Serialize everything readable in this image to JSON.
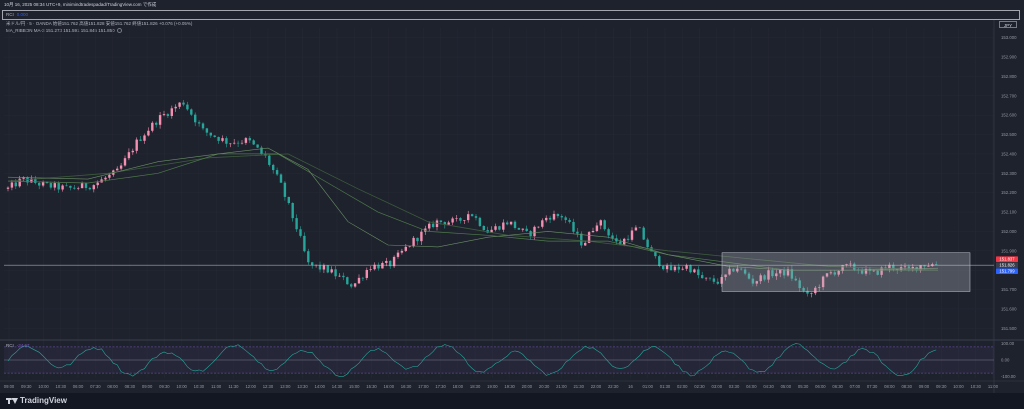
{
  "header": {
    "timestamp_line": "10月 16, 2025 08:34 UTC+9,  minimindtradespadad/TradingView.com で作成"
  },
  "top_panel": {
    "label": "RCI",
    "value": "0.000"
  },
  "legend": {
    "symbol_line": "米ドル/円 · 5 · OANDA  始値151.762  高値151.828  安値151.762  終値151.826  +0.076 (+0.05%)",
    "ribbon_line": "MA_RIBBON MA-3  151.273  151.591  151.845  151.850"
  },
  "currency_badge": "JPY",
  "rsi_panel": {
    "label": "RCI",
    "value": "-34.67"
  },
  "footer": {
    "brand": "TradingView"
  },
  "colors": {
    "background": "#1e222d",
    "up": "#f48fb1",
    "down": "#26a69a",
    "ma": "#4a6b45",
    "rci": "#26a69a",
    "box_fill": "#a8abb4",
    "price_red": "#f23645",
    "price_blue": "#2962ff"
  },
  "price_tags": [
    {
      "text": "151.837",
      "color": "#f23645"
    },
    {
      "text": "151.826",
      "color": "#3a3e4a"
    },
    {
      "text": "151.799",
      "color": "#2962ff"
    }
  ],
  "chart_data": {
    "type": "candlestick",
    "price_axis": {
      "ticks": [
        "153.000",
        "152.900",
        "152.800",
        "152.700",
        "152.600",
        "152.500",
        "152.400",
        "152.300",
        "152.200",
        "152.100",
        "152.000",
        "151.900",
        "151.800",
        "151.700",
        "151.600",
        "151.500"
      ],
      "ylim": [
        151.45,
        153.05
      ]
    },
    "rci_axis": {
      "ticks": [
        "100.00",
        "0.00",
        "-100.00"
      ],
      "ylim": [
        -110,
        110
      ]
    },
    "time_labels": [
      "09:00",
      "09:30",
      "10:00",
      "10:30",
      "06:00",
      "07:30",
      "08:00",
      "08:30",
      "09:00",
      "09:30",
      "10:00",
      "10:30",
      "11:00",
      "11:30",
      "12:00",
      "12:30",
      "13:00",
      "13:30",
      "14:00",
      "14:30",
      "15:00",
      "15:30",
      "16:00",
      "16:30",
      "17:00",
      "17:30",
      "18:00",
      "18:30",
      "19:00",
      "19:30",
      "20:00",
      "20:30",
      "21:00",
      "21:30",
      "22:00",
      "22:30",
      "16",
      "01:00",
      "01:30",
      "02:00",
      "02:30",
      "03:00",
      "03:30",
      "04:00",
      "04:30",
      "05:00",
      "05:30",
      "06:00",
      "06:30",
      "07:00",
      "07:30",
      "08:00",
      "08:30",
      "09:00",
      "09:30",
      "10:00",
      "10:30",
      "11:00"
    ],
    "anchors": [
      [
        0,
        152.22
      ],
      [
        15,
        152.27
      ],
      [
        35,
        152.24
      ],
      [
        60,
        152.22
      ],
      [
        85,
        152.24
      ],
      [
        110,
        152.31
      ],
      [
        130,
        152.47
      ],
      [
        150,
        152.58
      ],
      [
        175,
        152.67
      ],
      [
        195,
        152.52
      ],
      [
        220,
        152.46
      ],
      [
        240,
        152.47
      ],
      [
        258,
        152.38
      ],
      [
        272,
        152.25
      ],
      [
        290,
        152.0
      ],
      [
        300,
        151.83
      ],
      [
        320,
        151.8
      ],
      [
        345,
        151.72
      ],
      [
        362,
        151.82
      ],
      [
        382,
        151.83
      ],
      [
        405,
        151.95
      ],
      [
        428,
        152.05
      ],
      [
        450,
        152.05
      ],
      [
        462,
        152.1
      ],
      [
        480,
        152.0
      ],
      [
        500,
        152.05
      ],
      [
        520,
        151.98
      ],
      [
        540,
        152.08
      ],
      [
        555,
        152.08
      ],
      [
        575,
        151.93
      ],
      [
        590,
        152.06
      ],
      [
        610,
        151.93
      ],
      [
        630,
        152.02
      ],
      [
        645,
        151.87
      ],
      [
        660,
        151.8
      ],
      [
        680,
        151.82
      ],
      [
        695,
        151.75
      ],
      [
        712,
        151.74
      ],
      [
        728,
        151.82
      ],
      [
        745,
        151.74
      ],
      [
        760,
        151.78
      ],
      [
        780,
        151.79
      ],
      [
        800,
        151.66
      ],
      [
        820,
        151.78
      ],
      [
        840,
        151.82
      ],
      [
        865,
        151.78
      ],
      [
        880,
        151.82
      ],
      [
        900,
        151.8
      ],
      [
        915,
        151.83
      ],
      [
        930,
        151.83
      ]
    ],
    "ma_fast": [
      [
        0,
        152.28
      ],
      [
        80,
        152.27
      ],
      [
        150,
        152.36
      ],
      [
        210,
        152.4
      ],
      [
        260,
        152.43
      ],
      [
        300,
        152.32
      ],
      [
        340,
        152.05
      ],
      [
        380,
        151.93
      ],
      [
        430,
        151.92
      ],
      [
        480,
        151.97
      ],
      [
        540,
        152.0
      ],
      [
        600,
        151.97
      ],
      [
        660,
        151.88
      ],
      [
        720,
        151.82
      ],
      [
        780,
        151.8
      ],
      [
        840,
        151.8
      ],
      [
        930,
        151.81
      ]
    ],
    "ma_slow": [
      [
        0,
        152.26
      ],
      [
        80,
        152.25
      ],
      [
        150,
        152.3
      ],
      [
        210,
        152.4
      ],
      [
        270,
        152.4
      ],
      [
        320,
        152.25
      ],
      [
        370,
        152.1
      ],
      [
        420,
        152.0
      ],
      [
        480,
        151.98
      ],
      [
        540,
        151.95
      ],
      [
        600,
        151.95
      ],
      [
        660,
        151.88
      ],
      [
        720,
        151.84
      ],
      [
        780,
        151.8
      ],
      [
        840,
        151.8
      ],
      [
        930,
        151.8
      ]
    ],
    "ma_long": [
      [
        0,
        152.26
      ],
      [
        100,
        152.3
      ],
      [
        200,
        152.38
      ],
      [
        280,
        152.4
      ],
      [
        350,
        152.22
      ],
      [
        420,
        152.05
      ],
      [
        500,
        151.98
      ],
      [
        580,
        151.95
      ],
      [
        660,
        151.9
      ],
      [
        740,
        151.86
      ],
      [
        820,
        151.82
      ],
      [
        930,
        151.8
      ]
    ],
    "range_box": {
      "x_start_label": "02:00",
      "x_end_label": "10:00",
      "price_top": 151.89,
      "price_bottom": 151.69
    },
    "current_price": 151.826
  }
}
